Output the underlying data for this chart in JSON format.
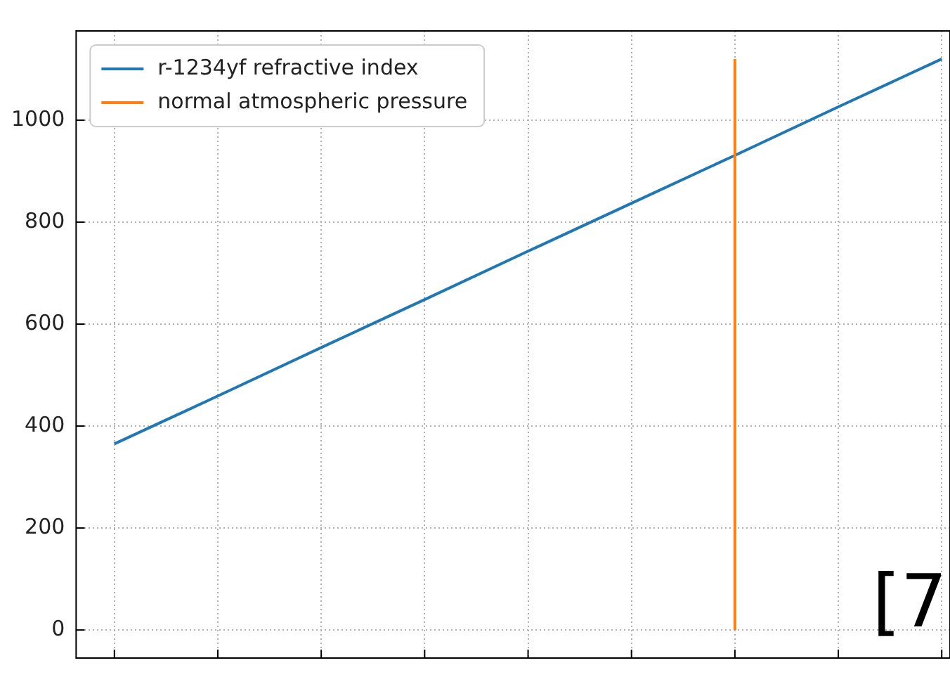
{
  "chart_data": {
    "type": "line",
    "categories": [
      null,
      null,
      null,
      null,
      null,
      null,
      null,
      null,
      null
    ],
    "series": [
      {
        "name": "r-1234yf refractive index",
        "color": "#1f77b4",
        "values": [
          365,
          459,
          554,
          648,
          743,
          837,
          931,
          1026,
          1120
        ]
      }
    ],
    "ref_lines": [
      {
        "axis": "x",
        "label": "normal atmospheric pressure",
        "color": "#ff7f0e"
      }
    ],
    "ylim": [
      -55,
      1175
    ],
    "yticks": [
      0,
      200,
      400,
      600,
      800,
      1000
    ],
    "grid": true,
    "legend": "top left",
    "line_style": "solid",
    "marker": "none",
    "annotations": [
      "[7"
    ]
  }
}
